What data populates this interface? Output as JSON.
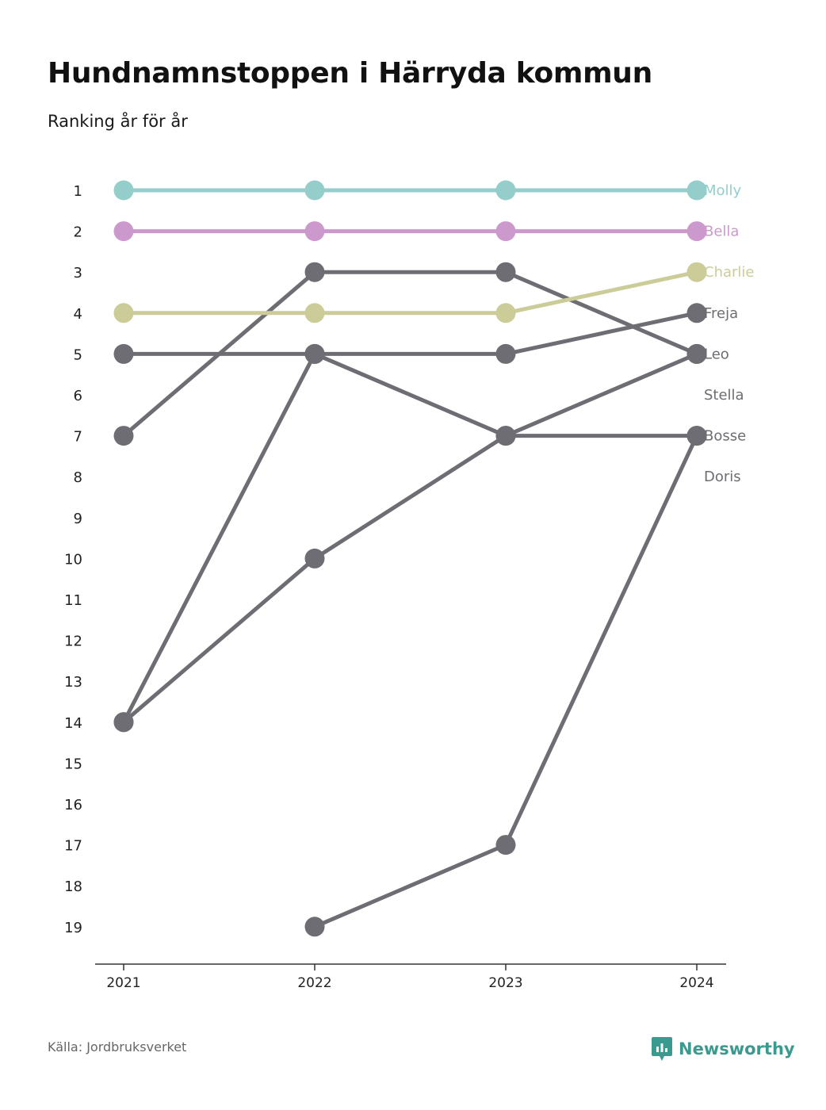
{
  "header": {
    "title": "Hundnamnstoppen i Härryda kommun",
    "subtitle": "Ranking år för år"
  },
  "footer": {
    "source": "Källa: Jordbruksverket",
    "brand": "Newsworthy",
    "brand_icon": "newsworthy-logo-icon",
    "brand_color": "#3a9a8f"
  },
  "chart_data": {
    "type": "line",
    "x": [
      "2021",
      "2022",
      "2023",
      "2024"
    ],
    "y_ticks": [
      1,
      2,
      3,
      4,
      5,
      6,
      7,
      8,
      9,
      10,
      11,
      12,
      13,
      14,
      15,
      16,
      17,
      18,
      19
    ],
    "ylim": [
      1,
      19
    ],
    "y_inverted": true,
    "grid": false,
    "legend": "end-labels-right",
    "series": [
      {
        "name": "Molly",
        "values": [
          1,
          1,
          1,
          1
        ],
        "color": "#95cdcb"
      },
      {
        "name": "Bella",
        "values": [
          2,
          2,
          2,
          2
        ],
        "color": "#cc99cc"
      },
      {
        "name": "Charlie",
        "values": [
          4,
          4,
          4,
          3
        ],
        "color": "#cccc99"
      },
      {
        "name": "Freja",
        "values": [
          5,
          5,
          5,
          4
        ],
        "color": "#6e6d73"
      },
      {
        "name": "Leo",
        "values": [
          7,
          3,
          3,
          5
        ],
        "color": "#6e6d73"
      },
      {
        "name": "Stella",
        "values": [
          14,
          10,
          7,
          5
        ],
        "color": "#6e6d73"
      },
      {
        "name": "Bosse",
        "values": [
          14,
          5,
          7,
          7
        ],
        "color": "#6e6d73"
      },
      {
        "name": "Doris",
        "values": [
          null,
          19,
          17,
          7
        ],
        "color": "#6e6d73"
      }
    ]
  }
}
